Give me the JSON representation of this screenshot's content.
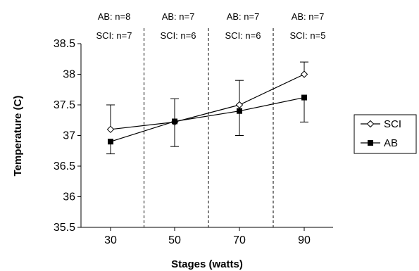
{
  "chart_data": {
    "type": "line",
    "xlabel": "Stages (watts)",
    "ylabel": "Temperature (C)",
    "categories": [
      "30",
      "50",
      "70",
      "90"
    ],
    "ylim": [
      35.5,
      38.5
    ],
    "yticks": [
      "38.5",
      "38",
      "37.5",
      "37",
      "36.5",
      "36",
      "35.5"
    ],
    "ytick_values": [
      38.5,
      38,
      37.5,
      37,
      36.5,
      36,
      35.5
    ],
    "grid": false,
    "stage_dividers": "dashed",
    "annotations": [
      {
        "ab": "AB: n=8",
        "sci": "SCI: n=7"
      },
      {
        "ab": "AB: n=7",
        "sci": "SCI: n=6"
      },
      {
        "ab": "AB: n=7",
        "sci": "SCI: n=6"
      },
      {
        "ab": "AB: n=7",
        "sci": "SCI: n=5"
      }
    ],
    "legend_position": "right",
    "series": [
      {
        "name": "SCI",
        "marker": "open-diamond",
        "values": [
          37.1,
          37.22,
          37.5,
          38.0
        ],
        "error_high": [
          37.5,
          37.6,
          37.9,
          38.2
        ]
      },
      {
        "name": "AB",
        "marker": "filled-square",
        "values": [
          36.9,
          37.23,
          37.4,
          37.62
        ],
        "error_low": [
          36.7,
          36.82,
          37.0,
          37.22
        ]
      }
    ]
  }
}
